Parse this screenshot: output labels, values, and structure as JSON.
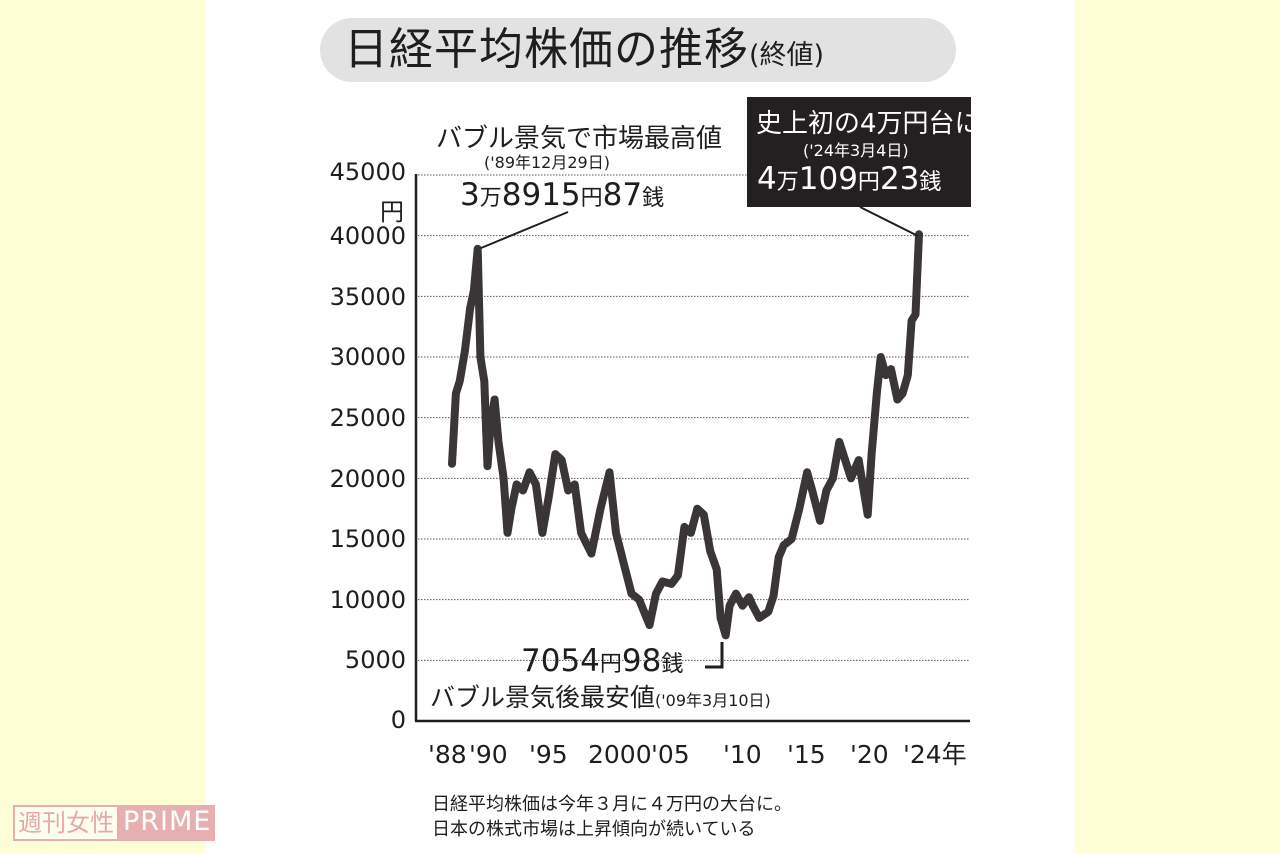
{
  "title": {
    "main": "日経平均株価の推移",
    "sub": "(終値)"
  },
  "annotations": {
    "peak": {
      "label": "バブル景気で市場最高値",
      "date": "('89年12月29日)",
      "value_num1": "3",
      "value_man": "万",
      "value_num2": "8915",
      "value_yen": "円",
      "value_num3": "87",
      "value_sen": "銭"
    },
    "record": {
      "label": "史上初の4万円台に",
      "date": "('24年3月4日)",
      "value_num1": "4",
      "value_man": "万",
      "value_num2": "109",
      "value_yen": "円",
      "value_num3": "23",
      "value_sen": "銭"
    },
    "low": {
      "value_num1": "7054",
      "value_yen": "円",
      "value_num2": "98",
      "value_sen": "銭",
      "label": "バブル景気後最安値",
      "date": "('09年3月10日)"
    }
  },
  "axis": {
    "y_unit": "円",
    "y_ticks": [
      "45000",
      "40000",
      "35000",
      "30000",
      "25000",
      "20000",
      "15000",
      "10000",
      "5000",
      "0"
    ],
    "x_ticks": [
      "'88",
      "'90",
      "'95",
      "2000",
      "'05",
      "'10",
      "'15",
      "'20",
      "'24年"
    ]
  },
  "caption": {
    "line1": "日経平均株価は今年３月に４万円の大台に。",
    "line2": "日本の株式市場は上昇傾向が続いている"
  },
  "brand": {
    "jp": "週刊女性",
    "en": "PRIME",
    "color": "#e6b0b0"
  },
  "colors": {
    "line": "#3a3536",
    "title_pill": "#e2e2e2",
    "record_box": "#241f20",
    "background": "#ffffd6"
  },
  "chart_data": {
    "type": "line",
    "title": "日経平均株価の推移（終値）",
    "xlabel": "年",
    "ylabel": "円",
    "ylim": [
      0,
      45000
    ],
    "xlim": [
      1988,
      2024
    ],
    "grid": "horizontal dotted",
    "x_tick_labels": [
      "'88",
      "'90",
      "'95",
      "2000",
      "'05",
      "'10",
      "'15",
      "'20",
      "'24年"
    ],
    "y_tick_labels": [
      "0",
      "5000",
      "10000",
      "15000",
      "20000",
      "25000",
      "30000",
      "35000",
      "40000",
      "45000"
    ],
    "series": [
      {
        "name": "日経平均株価（終値）",
        "x": [
          1988.0,
          1988.3,
          1988.6,
          1989.0,
          1989.4,
          1989.7,
          1989.99,
          1990.2,
          1990.5,
          1990.75,
          1991.0,
          1991.3,
          1991.6,
          1992.0,
          1992.3,
          1992.6,
          1993.0,
          1993.5,
          1994.0,
          1994.5,
          1995.0,
          1995.5,
          1996.0,
          1996.5,
          1997.0,
          1997.5,
          1998.0,
          1998.8,
          1999.5,
          2000.2,
          2000.7,
          2001.3,
          2001.9,
          2002.5,
          2003.3,
          2003.8,
          2004.3,
          2005.0,
          2005.5,
          2006.0,
          2006.5,
          2007.0,
          2007.5,
          2008.0,
          2008.5,
          2008.8,
          2009.2,
          2009.5,
          2010.0,
          2010.5,
          2011.0,
          2011.3,
          2011.8,
          2012.5,
          2012.9,
          2013.3,
          2013.7,
          2014.3,
          2014.9,
          2015.5,
          2015.9,
          2016.5,
          2017.0,
          2017.5,
          2018.0,
          2018.9,
          2019.5,
          2020.2,
          2020.5,
          2020.9,
          2021.2,
          2021.6,
          2022.0,
          2022.5,
          2022.9,
          2023.3,
          2023.6,
          2023.9,
          2024.17
        ],
        "values": [
          21200,
          27000,
          28000,
          30500,
          34000,
          35500,
          38916,
          30000,
          28000,
          21000,
          24500,
          26500,
          23000,
          20000,
          15500,
          17500,
          19500,
          19000,
          20500,
          19500,
          15500,
          18500,
          22000,
          21500,
          19000,
          19500,
          15500,
          13800,
          17500,
          20500,
          15500,
          13000,
          10500,
          10000,
          7900,
          10500,
          11500,
          11300,
          12000,
          16000,
          15500,
          17500,
          17000,
          14000,
          12500,
          8500,
          7055,
          9500,
          10500,
          9500,
          10200,
          9500,
          8500,
          9000,
          10300,
          13500,
          14500,
          15000,
          17500,
          20500,
          19000,
          16500,
          19000,
          20000,
          23000,
          20000,
          21500,
          17000,
          22000,
          27000,
          30000,
          28500,
          29000,
          26500,
          27000,
          28500,
          33000,
          33500,
          40109
        ]
      }
    ],
    "annotations": [
      {
        "x": 1989.99,
        "y": 38915.87,
        "text": "バブル景気で市場最高値 ('89年12月29日) 3万8915円87銭"
      },
      {
        "x": 2009.19,
        "y": 7054.98,
        "text": "バブル景気後最安値 ('09年3月10日) 7054円98銭"
      },
      {
        "x": 2024.17,
        "y": 40109.23,
        "text": "史上初の4万円台に ('24年3月4日) 4万109円23銭"
      }
    ]
  }
}
